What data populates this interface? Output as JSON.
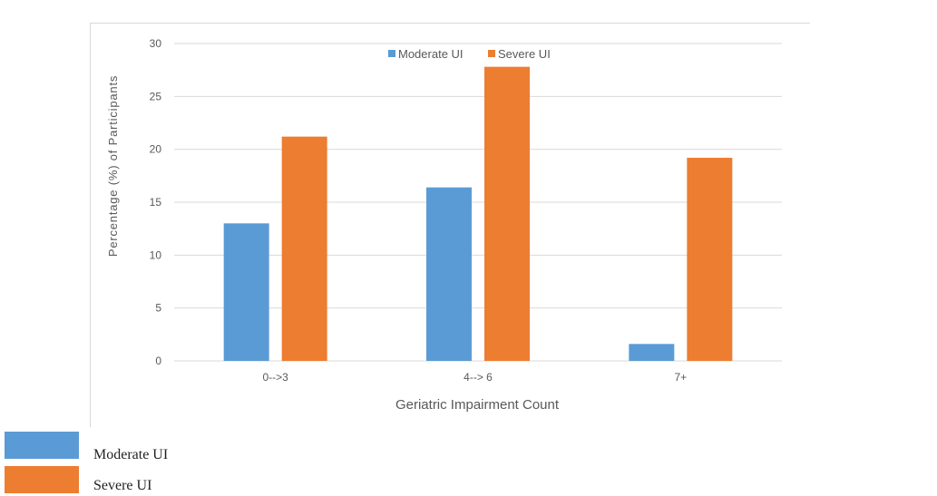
{
  "chart_data": {
    "type": "bar",
    "title": "",
    "xlabel": "Geriatric Impairment Count",
    "ylabel": "Percentage (%) of Participants",
    "categories": [
      "0-->3",
      "4--> 6",
      "7+"
    ],
    "series": [
      {
        "name": "Moderate UI",
        "color": "#5b9bd5",
        "values": [
          13.0,
          16.4,
          1.6
        ]
      },
      {
        "name": "Severe UI",
        "color": "#ed7d31",
        "values": [
          21.2,
          27.8,
          19.2
        ]
      }
    ],
    "ylim": [
      0,
      30
    ],
    "yticks": [
      0,
      5,
      10,
      15,
      20,
      25,
      30
    ],
    "grid": true,
    "legend": "top-center"
  },
  "bottom_legend": [
    {
      "label": "Moderate UI",
      "color": "#5b9bd5"
    },
    {
      "label": "Severe UI",
      "color": "#ed7d31"
    }
  ]
}
